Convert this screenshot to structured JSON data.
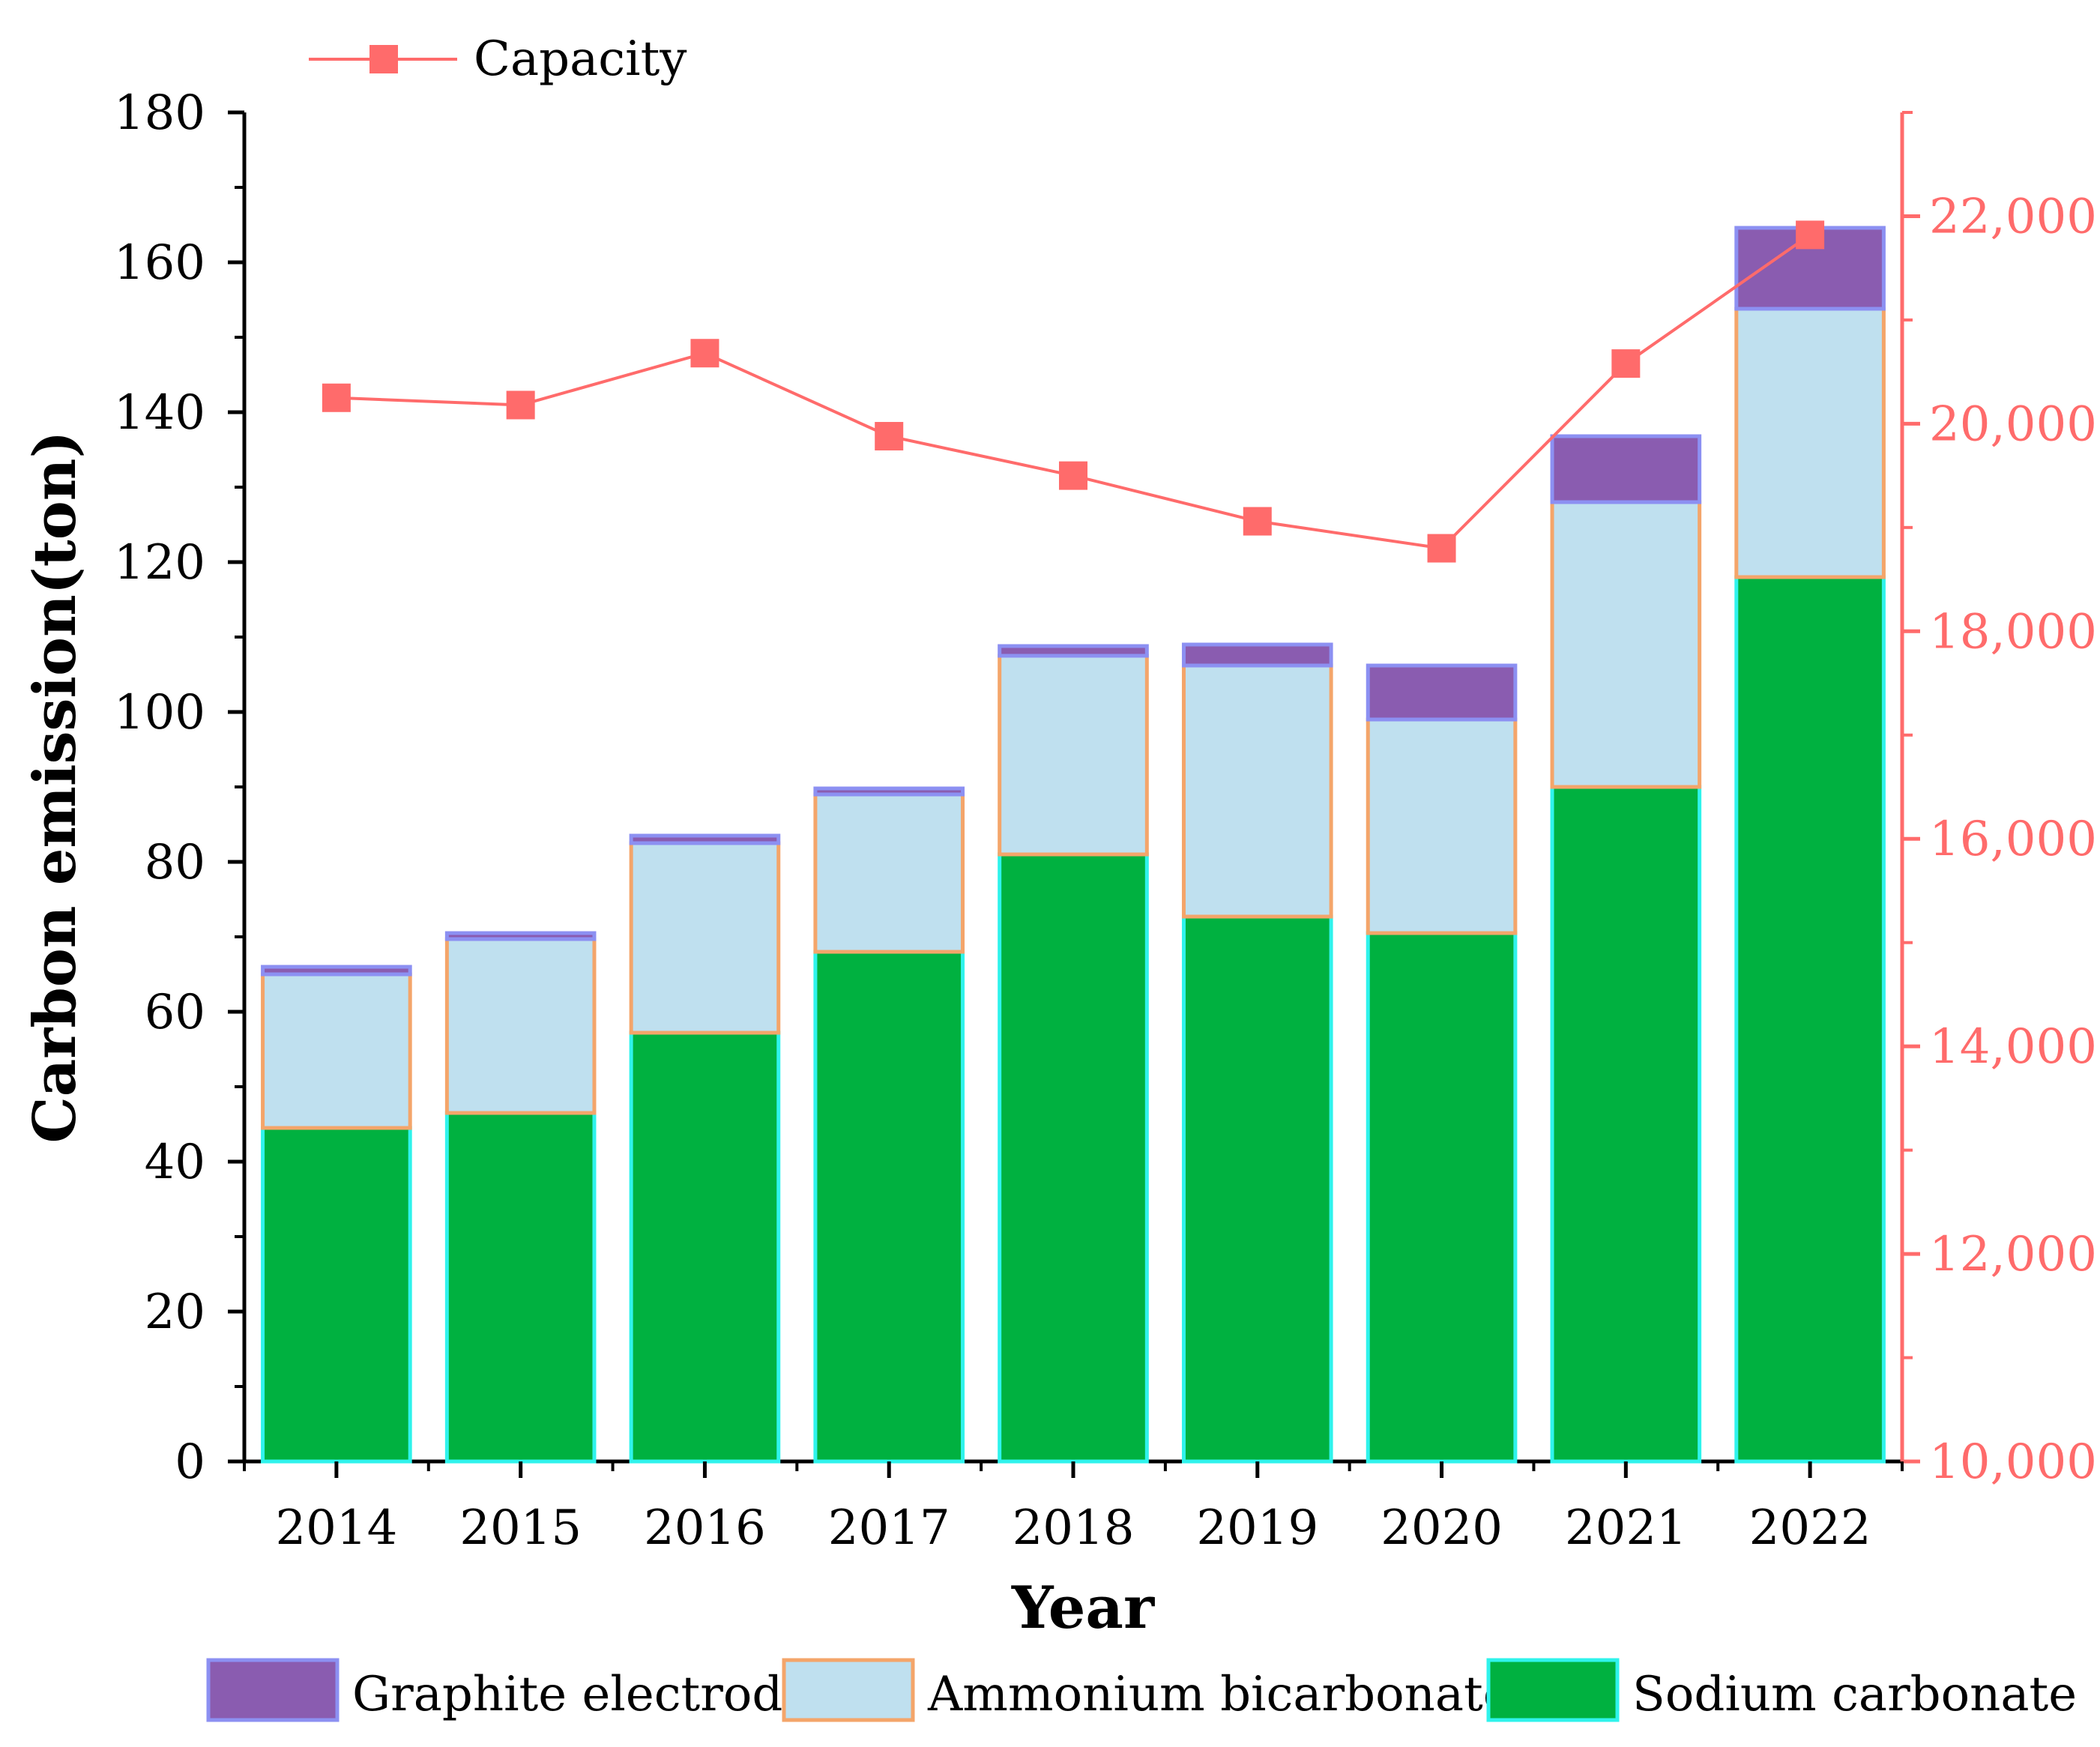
{
  "chart_data": {
    "type": "bar",
    "stacked": true,
    "categories": [
      "2014",
      "2015",
      "2016",
      "2017",
      "2018",
      "2019",
      "2020",
      "2021",
      "2022"
    ],
    "series": [
      {
        "name": "Sodium carbonate",
        "color": "#00b140",
        "border": "#2ff3ec",
        "values": [
          44.5,
          46.5,
          57.2,
          68,
          81,
          72.7,
          70.5,
          90,
          118
        ]
      },
      {
        "name": "Ammonium bicarbonate",
        "color": "#bfe0ef",
        "border": "#f4a56a",
        "values": [
          20.5,
          23.2,
          25.3,
          21,
          26.5,
          33.5,
          28.5,
          38,
          35.8
        ]
      },
      {
        "name": "Graphite electrode",
        "color": "#8a5cb0",
        "border": "#8c90f2",
        "values": [
          1,
          0.8,
          1,
          0.8,
          1.3,
          2.8,
          7.2,
          8.8,
          10.8
        ]
      }
    ],
    "line_series": {
      "name": "Capacity",
      "color": "#ff6b6b",
      "axis": "right",
      "values": [
        20250,
        20180,
        20680,
        19880,
        19500,
        19060,
        18800,
        20580,
        21820
      ]
    },
    "xlabel": "Year",
    "ylabel": "Carbon emission(ton)",
    "ylim": [
      0,
      180
    ],
    "yticks": [
      "0",
      "20",
      "40",
      "60",
      "80",
      "100",
      "120",
      "140",
      "160",
      "180"
    ],
    "y2lim": [
      10000,
      23000
    ],
    "y2ticks": [
      "10,000",
      "12,000",
      "14,000",
      "16,000",
      "18,000",
      "20,000",
      "22,000"
    ],
    "legend_bottom": [
      "Graphite electrode",
      "Ammonium bicarbonate",
      "Sodium carbonate"
    ],
    "legend_top": "Capacity"
  }
}
